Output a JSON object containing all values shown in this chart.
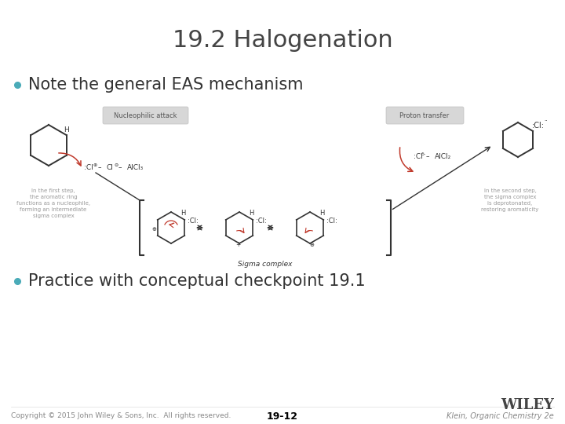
{
  "title": "19.2 Halogenation",
  "bullet1": "Note the general EAS mechanism",
  "bullet2": "Practice with conceptual checkpoint 19.1",
  "footer_left": "Copyright © 2015 John Wiley & Sons, Inc.  All rights reserved.",
  "footer_center": "19-12",
  "footer_right": "Klein, Organic Chemistry 2e",
  "wiley_text": "WILEY",
  "background_color": "#ffffff",
  "title_color": "#444444",
  "bullet_color": "#333333",
  "bullet_dot_color": "#4aabb8",
  "footer_color": "#888888",
  "footer_center_color": "#000000",
  "diagram_dark": "#333333",
  "diagram_red": "#c0392b",
  "diagram_gray": "#bbbbbb",
  "diagram_mid_gray": "#999999",
  "title_fontsize": 22,
  "bullet1_fontsize": 15,
  "bullet2_fontsize": 15,
  "footer_fontsize": 6.5,
  "wiley_fontsize": 13,
  "page_num_fontsize": 9
}
